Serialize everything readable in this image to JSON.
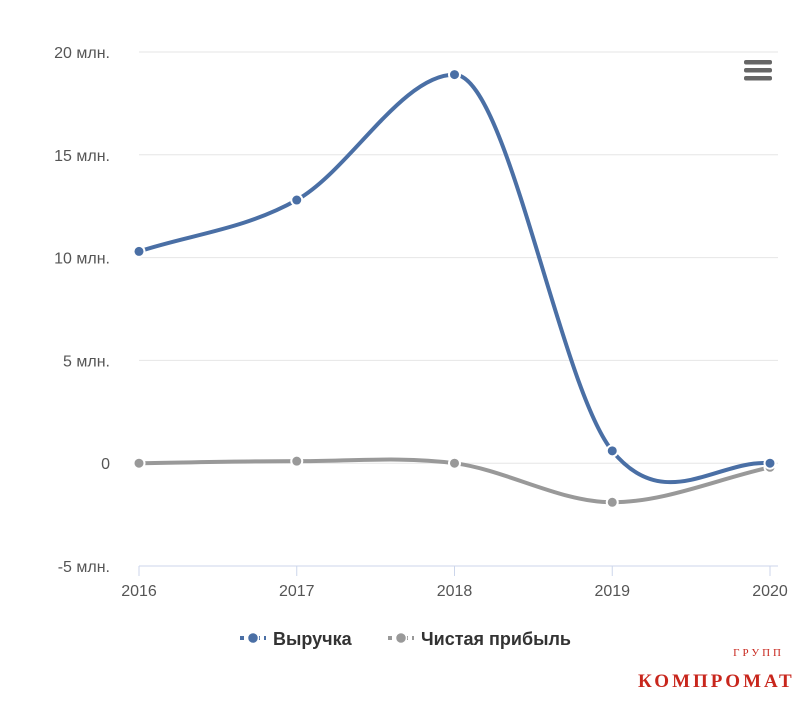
{
  "chart_data": {
    "type": "line",
    "smooth": true,
    "categories": [
      "2016",
      "2017",
      "2018",
      "2019",
      "2020"
    ],
    "ylim": [
      -5,
      20
    ],
    "yticks": [
      20,
      15,
      10,
      5,
      0,
      -5
    ],
    "ytick_labels": [
      "20 млн.",
      "15 млн.",
      "10 млн.",
      "5 млн.",
      "0",
      "-5 млн."
    ],
    "grid": true,
    "legend_position": "bottom",
    "series": [
      {
        "name": "Выручка",
        "color": "#4a6fa5",
        "values": [
          10.3,
          12.8,
          18.9,
          0.6,
          0.0
        ]
      },
      {
        "name": "Чистая прибыль",
        "color": "#999999",
        "values": [
          0.0,
          0.1,
          0.0,
          -1.9,
          -0.2
        ]
      }
    ]
  },
  "menu": {
    "icon": "hamburger-menu-icon"
  },
  "watermark": {
    "main": "КОМПРОМАТ",
    "sub": "ГРУПП"
  }
}
